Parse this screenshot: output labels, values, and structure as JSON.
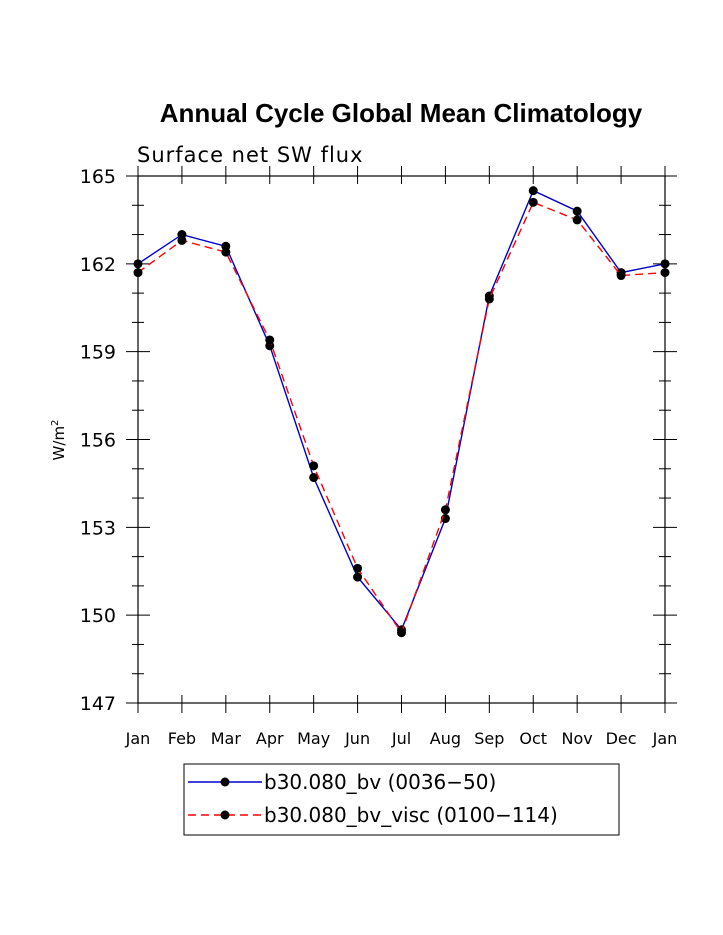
{
  "chart_data": {
    "type": "line",
    "title": "Annual Cycle Global Mean Climatology",
    "subtitle": "Surface net SW flux",
    "ylabel_base": "W/m",
    "ylabel_sup": "2",
    "xlabel": "",
    "categories": [
      "Jan",
      "Feb",
      "Mar",
      "Apr",
      "May",
      "Jun",
      "Jul",
      "Aug",
      "Sep",
      "Oct",
      "Nov",
      "Dec",
      "Jan"
    ],
    "ylim": [
      147,
      165
    ],
    "yticks": [
      147,
      150,
      153,
      156,
      159,
      162,
      165
    ],
    "series": [
      {
        "name": "b30.080_bv (0036−50)",
        "color": "#0000cc",
        "dash": "solid",
        "values": [
          162.0,
          163.0,
          162.6,
          159.2,
          154.7,
          151.3,
          149.5,
          153.3,
          160.9,
          164.5,
          163.8,
          161.7,
          162.0
        ]
      },
      {
        "name": "b30.080_bv_visc (0100−114)",
        "color": "#ff0000",
        "dash": "dashed",
        "values": [
          161.7,
          162.8,
          162.4,
          159.4,
          155.1,
          151.6,
          149.4,
          153.6,
          160.8,
          164.1,
          163.5,
          161.6,
          161.7
        ]
      }
    ],
    "legend_position": "bottom"
  }
}
